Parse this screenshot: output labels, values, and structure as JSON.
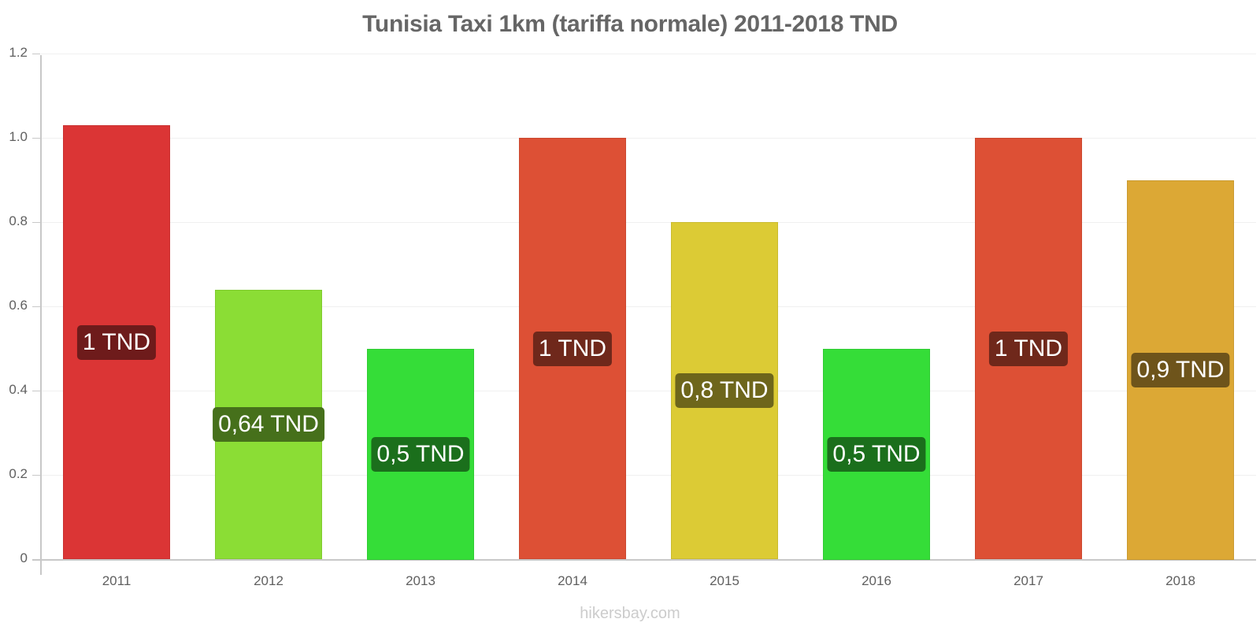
{
  "chart_data": {
    "type": "bar",
    "title": "Tunisia Taxi 1km (tariffa normale) 2011-2018 TND",
    "xlabel": "",
    "ylabel": "",
    "ylim": [
      0,
      1.2
    ],
    "yticks": [
      "0",
      "0.2",
      "0.4",
      "0.6",
      "0.8",
      "1.0",
      "1.2"
    ],
    "grid": true,
    "legend": null,
    "categories": [
      "2011",
      "2012",
      "2013",
      "2014",
      "2015",
      "2016",
      "2017",
      "2018"
    ],
    "values": [
      1.03,
      0.64,
      0.5,
      1.0,
      0.8,
      0.5,
      1.0,
      0.9
    ],
    "data_labels": [
      "1 TND",
      "0,64 TND",
      "0,5 TND",
      "1 TND",
      "0,8 TND",
      "0,5 TND",
      "1 TND",
      "0,9 TND"
    ],
    "bar_colors": [
      "#db3535",
      "#8bdd35",
      "#35dd38",
      "#dd5035",
      "#dccb35",
      "#35dd38",
      "#dd5035",
      "#dca835"
    ],
    "label_colors": [
      "#6e1b1b",
      "#46701b",
      "#1b6f1c",
      "#6f281b",
      "#6e661b",
      "#1b6f1c",
      "#6f281b",
      "#6e541b"
    ]
  },
  "credit": "hikersbay.com"
}
